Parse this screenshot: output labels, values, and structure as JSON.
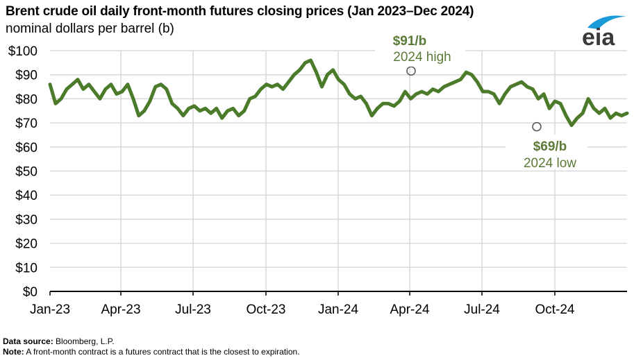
{
  "header": {
    "title": "Brent crude oil daily front-month futures closing prices (Jan 2023–Dec 2024)",
    "subtitle": "nominal dollars per barrel (b)",
    "logo_text": "eia"
  },
  "footer": {
    "source_label": "Data source:",
    "source_value": "Bloomberg, L.P.",
    "note_label": "Note:",
    "note_value": "A front-month contract is a futures contract that is the closest to expiration."
  },
  "annotations": {
    "high_value": "$91/b",
    "high_label": "2024 high",
    "low_value": "$69/b",
    "low_label": "2024 low"
  },
  "colors": {
    "line": "#4a7a2a",
    "annotation": "#5a7a37",
    "grid": "#d9d9d9",
    "logo_blue": "#1a9ad6",
    "logo_text": "#3a3a3a"
  },
  "chart_data": {
    "type": "line",
    "title": "Brent crude oil daily front-month futures closing prices (Jan 2023–Dec 2024)",
    "subtitle": "nominal dollars per barrel (b)",
    "xlabel": "",
    "ylabel": "nominal dollars per barrel (b)",
    "ylim": [
      0,
      100
    ],
    "yticks": [
      "$0",
      "$10",
      "$20",
      "$30",
      "$40",
      "$50",
      "$60",
      "$70",
      "$80",
      "$90",
      "$100"
    ],
    "xticks": [
      "Jan-23",
      "Apr-23",
      "Jul-23",
      "Oct-23",
      "Jan-24",
      "Apr-24",
      "Jul-24",
      "Oct-24"
    ],
    "grid": true,
    "legend": "none",
    "frequency": "weekly approximation of daily series",
    "series": [
      {
        "name": "Brent front-month futures",
        "x_start": "2023-01-03",
        "x_end": "2024-12-31",
        "values": [
          86,
          78,
          80,
          84,
          86,
          88,
          84,
          86,
          83,
          80,
          84,
          86,
          82,
          83,
          86,
          80,
          73,
          75,
          79,
          85,
          86,
          84,
          78,
          76,
          73,
          76,
          77,
          75,
          76,
          74,
          76,
          72,
          75,
          76,
          73,
          75,
          80,
          81,
          84,
          86,
          85,
          86,
          84,
          87,
          90,
          92,
          95,
          96,
          91,
          85,
          90,
          92,
          88,
          86,
          82,
          80,
          81,
          78,
          73,
          76,
          78,
          78,
          77,
          79,
          83,
          80,
          82,
          83,
          82,
          84,
          83,
          85,
          86,
          87,
          88,
          91,
          90,
          87,
          83,
          83,
          82,
          78,
          82,
          85,
          86,
          87,
          85,
          84,
          80,
          82,
          76,
          79,
          78,
          73,
          69,
          72,
          74,
          80,
          76,
          74,
          76,
          72,
          74,
          73,
          74
        ]
      }
    ],
    "annotations": [
      {
        "label": "$91/b 2024 high",
        "x": "2024-04-05",
        "y": 91
      },
      {
        "label": "$69/b 2024 low",
        "x": "2024-09-10",
        "y": 69
      }
    ]
  }
}
